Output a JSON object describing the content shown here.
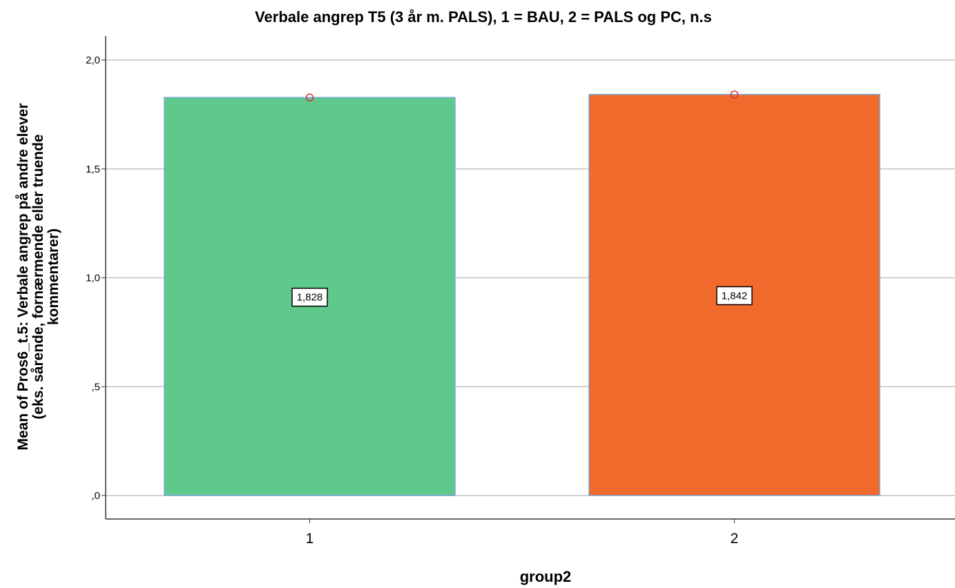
{
  "chart_data": {
    "type": "bar",
    "title": "Verbale angrep T5 (3 år m. PALS), 1 = BAU, 2 = PALS og PC, n.s",
    "xlabel": "group2",
    "ylabel_lines": [
      "Mean of Pros6_t.5: Verbale angrep på andre elever",
      "(eks. sårende, fornærmende eller truende",
      "kommentarer)"
    ],
    "categories": [
      "1",
      "2"
    ],
    "values": [
      1.828,
      1.842
    ],
    "data_labels": [
      "1,828",
      "1,842"
    ],
    "colors": [
      "#5ec98a",
      "#f2692c"
    ],
    "ylim": [
      0,
      2.1
    ],
    "yticks": [
      {
        "value": 0,
        "label": ",0"
      },
      {
        "value": 0.5,
        "label": ",5"
      },
      {
        "value": 1.0,
        "label": "1,0"
      },
      {
        "value": 1.5,
        "label": "1,5"
      },
      {
        "value": 2.0,
        "label": "2,0"
      }
    ],
    "grid": true,
    "legend": "none",
    "point_markers": true
  }
}
